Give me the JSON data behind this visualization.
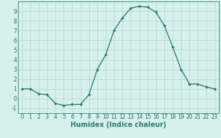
{
  "x": [
    0,
    1,
    2,
    3,
    4,
    5,
    6,
    7,
    8,
    9,
    10,
    11,
    12,
    13,
    14,
    15,
    16,
    17,
    18,
    19,
    20,
    21,
    22,
    23
  ],
  "y": [
    1,
    1,
    0.5,
    0.4,
    -0.5,
    -0.7,
    -0.6,
    -0.6,
    0.4,
    3.0,
    4.5,
    7.0,
    8.3,
    9.3,
    9.5,
    9.4,
    8.9,
    7.5,
    5.3,
    3.0,
    1.5,
    1.5,
    1.2,
    1.0
  ],
  "line_color": "#2e7d6e",
  "marker": "D",
  "marker_size": 2.0,
  "bg_color": "#d6f0ee",
  "grid_color": "#b8d8d4",
  "xlabel": "Humidex (Indice chaleur)",
  "xlim": [
    -0.5,
    23.5
  ],
  "ylim": [
    -1.5,
    10
  ],
  "yticks": [
    -1,
    0,
    1,
    2,
    3,
    4,
    5,
    6,
    7,
    8,
    9
  ],
  "xticks": [
    0,
    1,
    2,
    3,
    4,
    5,
    6,
    7,
    8,
    9,
    10,
    11,
    12,
    13,
    14,
    15,
    16,
    17,
    18,
    19,
    20,
    21,
    22,
    23
  ],
  "tick_label_fontsize": 5.5,
  "xlabel_fontsize": 7.0,
  "line_width": 1.0
}
